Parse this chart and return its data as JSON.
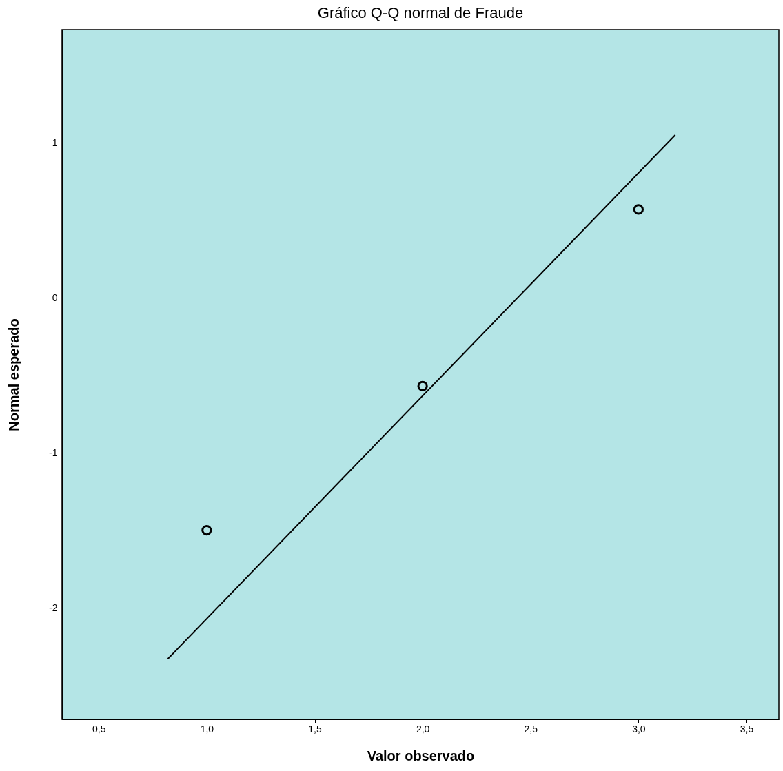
{
  "chart_data": {
    "type": "scatter",
    "title": "Gráfico Q-Q normal de Fraude",
    "xlabel": "Valor observado",
    "ylabel": "Normal esperado",
    "xlim": [
      0.33,
      3.65
    ],
    "ylim": [
      -2.72,
      1.73
    ],
    "xticks": [
      {
        "value": 0.5,
        "label": "0,5"
      },
      {
        "value": 1.0,
        "label": "1,0"
      },
      {
        "value": 1.5,
        "label": "1,5"
      },
      {
        "value": 2.0,
        "label": "2,0"
      },
      {
        "value": 2.5,
        "label": "2,5"
      },
      {
        "value": 3.0,
        "label": "3,0"
      },
      {
        "value": 3.5,
        "label": "3,5"
      }
    ],
    "yticks": [
      -2,
      -1,
      0,
      1
    ],
    "grid": false,
    "marker": "circle",
    "series": [
      {
        "color": "#000000",
        "x": [
          1,
          2,
          3
        ],
        "values": [
          -1.5,
          -0.57,
          0.57
        ]
      },
      {
        "type": "line",
        "color": "#000000",
        "x": [
          0.82,
          3.17
        ],
        "values": [
          -2.33,
          1.05
        ],
        "line_style": "solid",
        "marker": "none"
      }
    ]
  }
}
